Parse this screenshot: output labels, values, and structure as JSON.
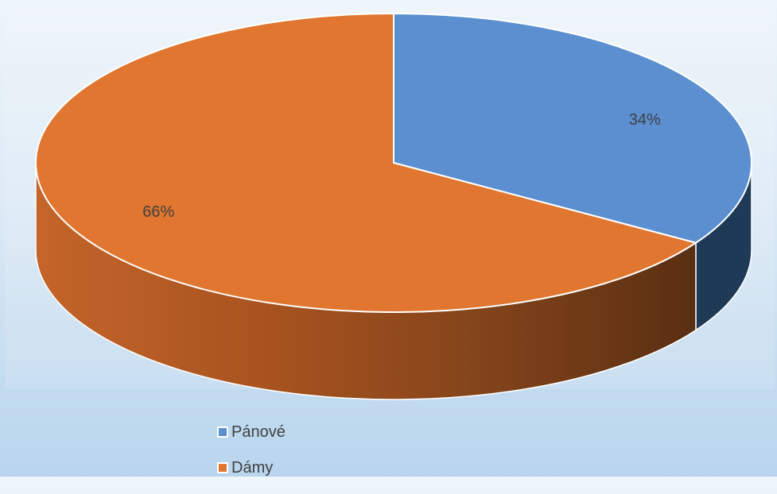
{
  "chart_data": {
    "type": "pie",
    "style": "3d",
    "categories": [
      "Pánové",
      "Dámy"
    ],
    "values": [
      34,
      66
    ],
    "labels": [
      "34%",
      "66%"
    ],
    "colors": [
      "#5b8fd0",
      "#e0762f"
    ],
    "legend_position": "bottom-left"
  },
  "legend": {
    "items": [
      {
        "label": "Pánové",
        "color": "#5b8fd0"
      },
      {
        "label": "Dámy",
        "color": "#e0762f"
      }
    ]
  }
}
